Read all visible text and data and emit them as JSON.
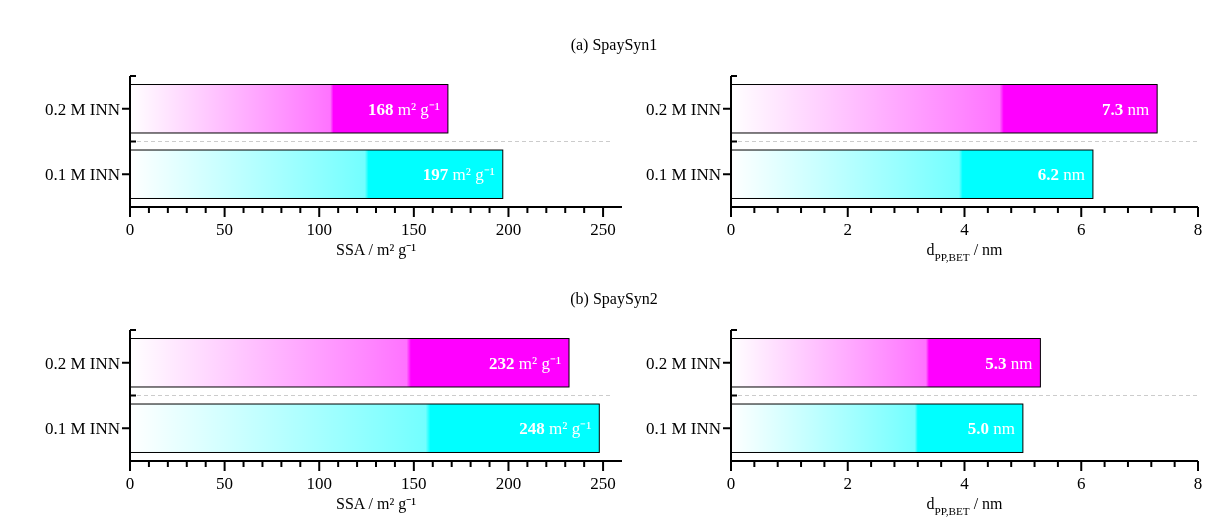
{
  "chart_data": [
    {
      "type": "bar",
      "orientation": "horizontal",
      "title": "(a) SpaySyn1",
      "categories": [
        "0.2 M INN",
        "0.1 M INN"
      ],
      "values": [
        168,
        197
      ],
      "colors": [
        "#ff00ff",
        "#00ffff"
      ],
      "value_labels": [
        "168 m² g⁻¹",
        "197 m² g⁻¹"
      ],
      "xlabel": "SSA / m² g⁻¹",
      "xlim": [
        0,
        260
      ],
      "xticks": [
        0,
        {
          "value": 10,
          "label": null
        },
        {
          "value": 20,
          "label": null
        },
        {
          "value": 30,
          "label": null
        },
        {
          "value": 40,
          "label": null
        },
        50,
        {
          "value": 60,
          "label": null
        },
        {
          "value": 70,
          "label": null
        },
        {
          "value": 80,
          "label": null
        },
        {
          "value": 90,
          "label": null
        },
        100,
        {
          "value": 110,
          "label": null
        },
        {
          "value": 120,
          "label": null
        },
        {
          "value": 130,
          "label": null
        },
        {
          "value": 140,
          "label": null
        },
        150,
        {
          "value": 160,
          "label": null
        },
        {
          "value": 170,
          "label": null
        },
        {
          "value": 180,
          "label": null
        },
        {
          "value": 190,
          "label": null
        },
        200,
        {
          "value": 210,
          "label": null
        },
        {
          "value": 220,
          "label": null
        },
        {
          "value": 230,
          "label": null
        },
        {
          "value": 240,
          "label": null
        },
        250
      ]
    },
    {
      "type": "bar",
      "orientation": "horizontal",
      "categories": [
        "0.2 M INN",
        "0.1 M INN"
      ],
      "values": [
        7.3,
        6.2
      ],
      "colors": [
        "#ff00ff",
        "#00ffff"
      ],
      "value_labels": [
        "7.3 nm",
        "6.2 nm"
      ],
      "xlabel": "d$_{PP,BET}$ / nm",
      "xlim": [
        0,
        8
      ],
      "xticks": [
        0,
        {
          "value": 0.4,
          "label": null
        },
        {
          "value": 0.8,
          "label": null
        },
        {
          "value": 1.2,
          "label": null
        },
        {
          "value": 1.6,
          "label": null
        },
        2,
        {
          "value": 2.4,
          "label": null
        },
        {
          "value": 2.8,
          "label": null
        },
        {
          "value": 3.2,
          "label": null
        },
        {
          "value": 3.6,
          "label": null
        },
        4,
        {
          "value": 4.4,
          "label": null
        },
        {
          "value": 4.8,
          "label": null
        },
        {
          "value": 5.2,
          "label": null
        },
        {
          "value": 5.6,
          "label": null
        },
        6,
        {
          "value": 6.4,
          "label": null
        },
        {
          "value": 6.8,
          "label": null
        },
        {
          "value": 7.2,
          "label": null
        },
        {
          "value": 7.6,
          "label": null
        },
        8
      ]
    },
    {
      "type": "bar",
      "orientation": "horizontal",
      "title": "(b) SpaySyn2",
      "categories": [
        "0.2 M INN",
        "0.1 M INN"
      ],
      "values": [
        232,
        248
      ],
      "colors": [
        "#ff00ff",
        "#00ffff"
      ],
      "value_labels": [
        "232 m² g⁻¹",
        "248 m² g⁻¹"
      ],
      "xlabel": "SSA / m² g⁻¹",
      "xlim": [
        0,
        260
      ],
      "xticks": [
        0,
        {
          "value": 10,
          "label": null
        },
        {
          "value": 20,
          "label": null
        },
        {
          "value": 30,
          "label": null
        },
        {
          "value": 40,
          "label": null
        },
        50,
        {
          "value": 60,
          "label": null
        },
        {
          "value": 70,
          "label": null
        },
        {
          "value": 80,
          "label": null
        },
        {
          "value": 90,
          "label": null
        },
        100,
        {
          "value": 110,
          "label": null
        },
        {
          "value": 120,
          "label": null
        },
        {
          "value": 130,
          "label": null
        },
        {
          "value": 140,
          "label": null
        },
        150,
        {
          "value": 160,
          "label": null
        },
        {
          "value": 170,
          "label": null
        },
        {
          "value": 180,
          "label": null
        },
        {
          "value": 190,
          "label": null
        },
        200,
        {
          "value": 210,
          "label": null
        },
        {
          "value": 220,
          "label": null
        },
        {
          "value": 230,
          "label": null
        },
        {
          "value": 240,
          "label": null
        },
        250
      ]
    },
    {
      "type": "bar",
      "orientation": "horizontal",
      "categories": [
        "0.2 M INN",
        "0.1 M INN"
      ],
      "values": [
        5.3,
        5.0
      ],
      "colors": [
        "#ff00ff",
        "#00ffff"
      ],
      "value_labels": [
        "5.3 nm",
        "5.0 nm"
      ],
      "xlabel": "d$_{PP,BET}$ / nm",
      "xlim": [
        0,
        8
      ],
      "xticks": [
        0,
        {
          "value": 0.4,
          "label": null
        },
        {
          "value": 0.8,
          "label": null
        },
        {
          "value": 1.2,
          "label": null
        },
        {
          "value": 1.6,
          "label": null
        },
        2,
        {
          "value": 2.4,
          "label": null
        },
        {
          "value": 2.8,
          "label": null
        },
        {
          "value": 3.2,
          "label": null
        },
        {
          "value": 3.6,
          "label": null
        },
        4,
        {
          "value": 4.4,
          "label": null
        },
        {
          "value": 4.8,
          "label": null
        },
        {
          "value": 5.2,
          "label": null
        },
        {
          "value": 5.6,
          "label": null
        },
        6,
        {
          "value": 6.4,
          "label": null
        },
        {
          "value": 6.8,
          "label": null
        },
        {
          "value": 7.2,
          "label": null
        },
        {
          "value": 7.6,
          "label": null
        },
        8
      ]
    }
  ]
}
